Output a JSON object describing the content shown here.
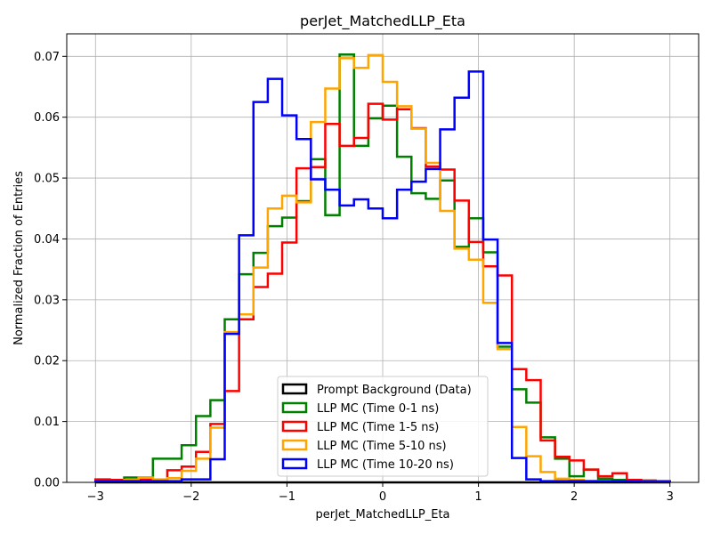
{
  "chart_data": {
    "type": "line",
    "title": "perJet_MatchedLLP_Eta",
    "xlabel": "perJet_MatchedLLP_Eta",
    "ylabel": "Normalized Fraction of Entries",
    "xlim": [
      -3.3,
      3.3
    ],
    "ylim": [
      0,
      0.0737
    ],
    "xticks": [
      -3,
      -2,
      -1,
      0,
      1,
      2,
      3
    ],
    "xtick_labels": [
      "−3",
      "−2",
      "−1",
      "0",
      "1",
      "2",
      "3"
    ],
    "yticks": [
      0,
      0.01,
      0.02,
      0.03,
      0.04,
      0.05,
      0.06,
      0.07
    ],
    "ytick_labels": [
      "0.00",
      "0.01",
      "0.02",
      "0.03",
      "0.04",
      "0.05",
      "0.06",
      "0.07"
    ],
    "grid": true,
    "legend_position": "bottom-center",
    "bin_edges": [
      -3.0,
      -2.85,
      -2.7,
      -2.55,
      -2.4,
      -2.25,
      -2.1,
      -1.95,
      -1.8,
      -1.65,
      -1.5,
      -1.35,
      -1.2,
      -1.05,
      -0.9,
      -0.75,
      -0.6,
      -0.45,
      -0.3,
      -0.15,
      0.0,
      0.15,
      0.3,
      0.45,
      0.6,
      0.75,
      0.9,
      1.05,
      1.2,
      1.35,
      1.5,
      1.65,
      1.8,
      1.95,
      2.1,
      2.25,
      2.4,
      2.55,
      2.7,
      2.85,
      3.0
    ],
    "series": [
      {
        "name": "Prompt Background (Data)",
        "color": "#000000",
        "values": [
          0,
          0,
          0,
          0,
          0,
          0,
          0,
          0,
          0,
          0,
          0,
          0,
          0,
          0,
          0,
          0,
          0,
          0,
          0,
          0,
          0,
          0,
          0,
          0,
          0,
          0,
          0,
          0,
          0,
          0,
          0,
          0,
          0,
          0,
          0,
          0,
          0,
          0,
          0,
          0
        ]
      },
      {
        "name": "LLP MC (Time 0-1 ns)",
        "color": "#008000",
        "values": [
          0.0003,
          0.0003,
          0.0008,
          0.0008,
          0.0039,
          0.0039,
          0.0061,
          0.0109,
          0.0135,
          0.0268,
          0.0342,
          0.0377,
          0.0421,
          0.0435,
          0.0462,
          0.0531,
          0.0439,
          0.0703,
          0.0553,
          0.0598,
          0.0619,
          0.0535,
          0.0475,
          0.0466,
          0.0496,
          0.0387,
          0.0434,
          0.0378,
          0.0223,
          0.0153,
          0.0131,
          0.0074,
          0.0039,
          0.001,
          0.0021,
          0.0006,
          0.0004,
          0.0004,
          0.0003,
          0.0002
        ]
      },
      {
        "name": "LLP MC (Time 1-5 ns)",
        "color": "#ff0000",
        "values": [
          0.0005,
          0.0004,
          0.0004,
          0.0004,
          0.0002,
          0.002,
          0.0026,
          0.005,
          0.0096,
          0.015,
          0.0268,
          0.0321,
          0.0343,
          0.0394,
          0.0516,
          0.0518,
          0.0589,
          0.0553,
          0.0566,
          0.0622,
          0.0596,
          0.0613,
          0.0582,
          0.0519,
          0.0514,
          0.0463,
          0.0395,
          0.0355,
          0.034,
          0.0186,
          0.0168,
          0.0069,
          0.0042,
          0.0036,
          0.0021,
          0.001,
          0.0015,
          0.0004,
          0.0003,
          0.0002
        ]
      },
      {
        "name": "LLP MC (Time 5-10 ns)",
        "color": "#ffa500",
        "values": [
          0.0002,
          0.0002,
          0.0004,
          0.0008,
          0.0005,
          0.0007,
          0.0019,
          0.0039,
          0.009,
          0.0247,
          0.0276,
          0.0353,
          0.045,
          0.0471,
          0.046,
          0.0592,
          0.0647,
          0.0697,
          0.0681,
          0.0702,
          0.0658,
          0.0618,
          0.0581,
          0.0525,
          0.0446,
          0.0384,
          0.0366,
          0.0295,
          0.0219,
          0.0091,
          0.0043,
          0.0017,
          0.0006,
          0.0004,
          0.0002,
          0.0002,
          0.0002,
          0.0002,
          0.0001,
          0.0001
        ]
      },
      {
        "name": "LLP MC (Time 10-20 ns)",
        "color": "#0000ff",
        "values": [
          0.0002,
          0.0002,
          0.0002,
          0.0002,
          0.0002,
          0.0002,
          0.0005,
          0.0005,
          0.0038,
          0.0244,
          0.0406,
          0.0625,
          0.0663,
          0.0603,
          0.0564,
          0.0498,
          0.0481,
          0.0455,
          0.0465,
          0.045,
          0.0434,
          0.0481,
          0.0494,
          0.0515,
          0.058,
          0.0632,
          0.0675,
          0.0399,
          0.0229,
          0.004,
          0.0005,
          0.0002,
          0.0002,
          0.0002,
          0.0002,
          0.0002,
          0.0002,
          0.0002,
          0.0001,
          0.0001
        ]
      }
    ]
  }
}
